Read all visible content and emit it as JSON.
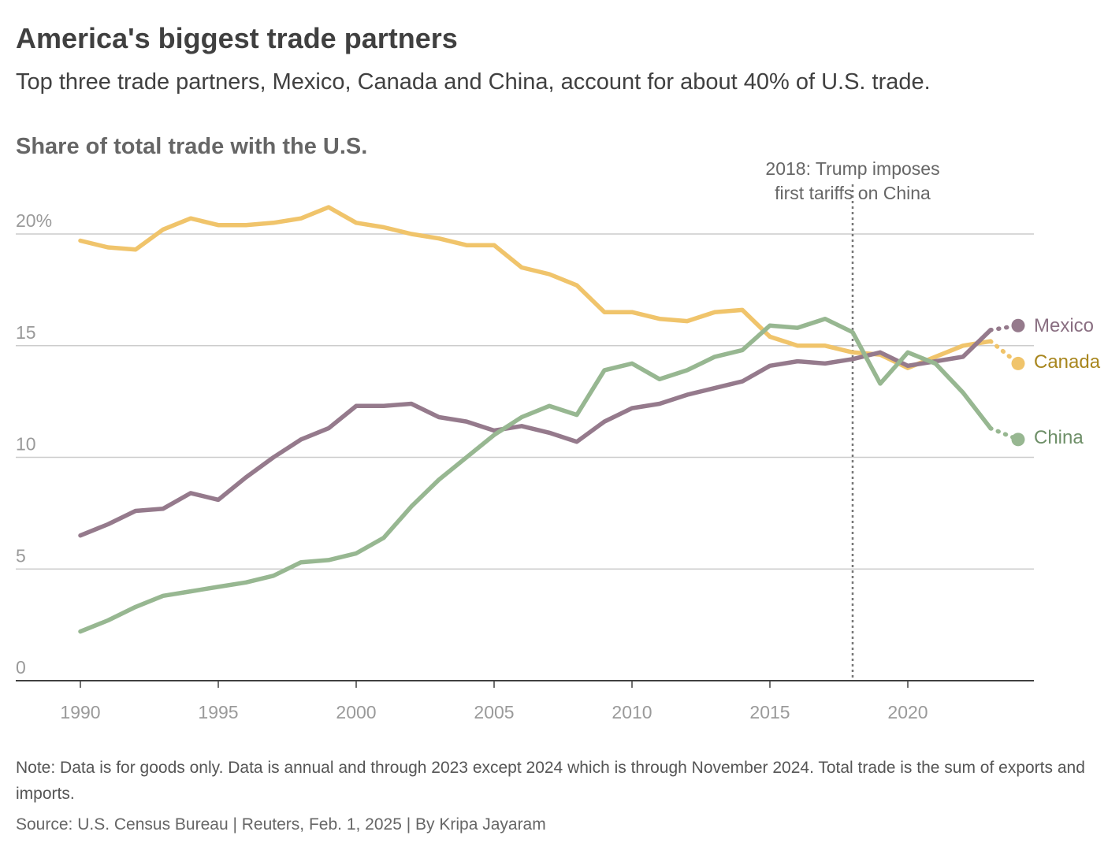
{
  "header": {
    "title": "America's biggest trade partners",
    "subtitle": "Top three trade partners, Mexico, Canada and China, account for about 40% of U.S. trade."
  },
  "footer": {
    "note": "Note: Data is for goods only. Data is annual and through 2023 except 2024 which is through November 2024. Total trade is the sum of exports and imports.",
    "source": "Source: U.S. Census Bureau | Reuters, Feb. 1, 2025 | By Kripa Jayaram"
  },
  "chart_data": {
    "type": "line",
    "title": "Share of total trade with the U.S.",
    "xlabel": "",
    "ylabel": "",
    "xlim": [
      1987.7,
      2024.6
    ],
    "ylim": [
      0,
      21
    ],
    "x_ticks": [
      1990,
      1995,
      2000,
      2005,
      2010,
      2015,
      2020
    ],
    "x_tick_labels": [
      "1990",
      "1995",
      "2000",
      "2005",
      "2010",
      "2015",
      "2020"
    ],
    "y_ticks": [
      0,
      5,
      10,
      15,
      20
    ],
    "y_tick_labels": [
      "0",
      "5",
      "10",
      "15",
      "20%"
    ],
    "grid": true,
    "legend": "direct labels at line ends",
    "x": [
      1990,
      1991,
      1992,
      1993,
      1994,
      1995,
      1996,
      1997,
      1998,
      1999,
      2000,
      2001,
      2002,
      2003,
      2004,
      2005,
      2006,
      2007,
      2008,
      2009,
      2010,
      2011,
      2012,
      2013,
      2014,
      2015,
      2016,
      2017,
      2018,
      2019,
      2020,
      2021,
      2022,
      2023,
      2024
    ],
    "series": [
      {
        "name": "Canada",
        "color": "#f0c46b",
        "label_color": "#a8861e",
        "values": [
          19.7,
          19.4,
          19.3,
          20.2,
          20.7,
          20.4,
          20.4,
          20.5,
          20.7,
          21.2,
          20.5,
          20.3,
          20.0,
          19.8,
          19.5,
          19.5,
          18.5,
          18.2,
          17.7,
          16.5,
          16.5,
          16.2,
          16.1,
          16.5,
          16.6,
          15.4,
          15.0,
          15.0,
          14.7,
          14.6,
          14.0,
          14.5,
          15.0,
          15.2,
          14.2
        ]
      },
      {
        "name": "Mexico",
        "color": "#957a8c",
        "label_color": "#8a6f82",
        "values": [
          6.5,
          7.0,
          7.6,
          7.7,
          8.4,
          8.1,
          9.1,
          10.0,
          10.8,
          11.3,
          12.3,
          12.3,
          12.4,
          11.8,
          11.6,
          11.2,
          11.4,
          11.1,
          10.7,
          11.6,
          12.2,
          12.4,
          12.8,
          13.1,
          13.4,
          14.1,
          14.3,
          14.2,
          14.4,
          14.7,
          14.1,
          14.3,
          14.5,
          15.7,
          15.9
        ]
      },
      {
        "name": "China",
        "color": "#97b791",
        "label_color": "#6e8f68",
        "values": [
          2.2,
          2.7,
          3.3,
          3.8,
          4.0,
          4.2,
          4.4,
          4.7,
          5.3,
          5.4,
          5.7,
          6.4,
          7.8,
          9.0,
          10.0,
          11.0,
          11.8,
          12.3,
          11.9,
          13.9,
          14.2,
          13.5,
          13.9,
          14.5,
          14.8,
          15.9,
          15.8,
          16.2,
          15.6,
          13.3,
          14.7,
          14.2,
          12.9,
          11.3,
          10.8
        ]
      }
    ],
    "annotations": [
      {
        "x": 2018,
        "text_lines": [
          "2018: Trump imposes",
          "first tariffs on China"
        ]
      }
    ]
  }
}
